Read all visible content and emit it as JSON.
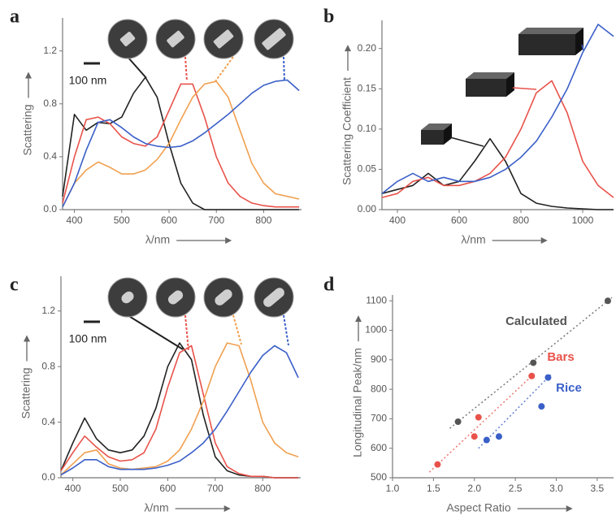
{
  "chart_data": [
    {
      "type": "line",
      "label": "a",
      "scale_bar": "100 nm",
      "xlabel": "λ/nm",
      "ylabel": "Scattering",
      "x": [
        375,
        400,
        425,
        450,
        475,
        500,
        525,
        550,
        575,
        600,
        625,
        650,
        675,
        700,
        725,
        750,
        775,
        800,
        825,
        850,
        875
      ],
      "xlim": [
        375,
        880
      ],
      "xticks": [
        400,
        500,
        600,
        700,
        800
      ],
      "ylim": [
        0,
        1.45
      ],
      "yticks": [
        {
          "value": 0,
          "label": "0.0"
        },
        0.4,
        0.8,
        1.2
      ],
      "series": [
        {
          "color": "#222222",
          "values": [
            0.1,
            0.72,
            0.6,
            0.66,
            0.65,
            0.7,
            0.88,
            1.0,
            0.85,
            0.5,
            0.2,
            0.05,
            0,
            0,
            0,
            0,
            0,
            0,
            0,
            0,
            0
          ]
        },
        {
          "color": "#e8524a",
          "values": [
            0.05,
            0.4,
            0.68,
            0.7,
            0.65,
            0.55,
            0.5,
            0.48,
            0.55,
            0.75,
            0.95,
            0.95,
            0.7,
            0.4,
            0.2,
            0.1,
            0.05,
            0.03,
            0.02,
            0.02,
            0.02
          ]
        },
        {
          "color": "#f0a050",
          "values": [
            0.02,
            0.2,
            0.3,
            0.36,
            0.32,
            0.27,
            0.27,
            0.3,
            0.38,
            0.5,
            0.68,
            0.85,
            0.95,
            0.97,
            0.85,
            0.6,
            0.35,
            0.2,
            0.12,
            0.1,
            0.08
          ]
        },
        {
          "color": "#3a5fc8",
          "values": [
            0.02,
            0.2,
            0.45,
            0.66,
            0.68,
            0.62,
            0.55,
            0.5,
            0.48,
            0.47,
            0.48,
            0.52,
            0.58,
            0.65,
            0.72,
            0.8,
            0.88,
            0.94,
            0.97,
            0.98,
            0.9
          ]
        }
      ]
    },
    {
      "type": "line",
      "label": "b",
      "xlabel": "λ/nm",
      "ylabel": "Scattering Coefficient",
      "x": [
        350,
        400,
        450,
        500,
        550,
        600,
        650,
        700,
        750,
        800,
        850,
        900,
        950,
        1000,
        1050,
        1100
      ],
      "xlim": [
        350,
        1100
      ],
      "xticks": [
        400,
        600,
        800,
        1000
      ],
      "ylim": [
        0,
        0.235
      ],
      "yticks": [
        {
          "value": 0,
          "label": "0.00"
        },
        {
          "value": 0.05,
          "label": "0.05"
        },
        {
          "value": 0.1,
          "label": "0.10"
        },
        {
          "value": 0.15,
          "label": "0.15"
        },
        {
          "value": 0.2,
          "label": "0.20"
        }
      ],
      "series": [
        {
          "color": "#222222",
          "values": [
            0.02,
            0.025,
            0.03,
            0.045,
            0.03,
            0.035,
            0.06,
            0.088,
            0.06,
            0.02,
            0.008,
            0.004,
            0.002,
            0.001,
            0,
            0
          ]
        },
        {
          "color": "#e8524a",
          "values": [
            0.015,
            0.02,
            0.035,
            0.04,
            0.03,
            0.03,
            0.035,
            0.045,
            0.065,
            0.1,
            0.145,
            0.16,
            0.12,
            0.06,
            0.03,
            0.015
          ]
        },
        {
          "color": "#3a5fc8",
          "values": [
            0.02,
            0.035,
            0.045,
            0.035,
            0.04,
            0.035,
            0.035,
            0.04,
            0.05,
            0.065,
            0.085,
            0.115,
            0.15,
            0.195,
            0.23,
            0.215
          ]
        }
      ]
    },
    {
      "type": "line",
      "label": "c",
      "scale_bar": "100 nm",
      "xlabel": "λ/nm",
      "ylabel": "Scattering",
      "x": [
        375,
        400,
        425,
        450,
        475,
        500,
        525,
        550,
        575,
        600,
        625,
        650,
        675,
        700,
        725,
        750,
        775,
        800,
        825,
        850,
        875
      ],
      "xlim": [
        375,
        880
      ],
      "xticks": [
        400,
        500,
        600,
        700,
        800
      ],
      "ylim": [
        0,
        1.45
      ],
      "yticks": [
        {
          "value": 0,
          "label": "0.0"
        },
        0.4,
        0.8,
        1.2
      ],
      "series": [
        {
          "color": "#222222",
          "values": [
            0.05,
            0.25,
            0.43,
            0.28,
            0.2,
            0.18,
            0.2,
            0.3,
            0.5,
            0.8,
            0.97,
            0.85,
            0.45,
            0.15,
            0.05,
            0.02,
            0.01,
            0.01,
            0,
            0,
            0
          ]
        },
        {
          "color": "#e8524a",
          "values": [
            0.05,
            0.18,
            0.3,
            0.22,
            0.15,
            0.12,
            0.13,
            0.18,
            0.35,
            0.65,
            0.9,
            0.95,
            0.6,
            0.25,
            0.08,
            0.03,
            0.01,
            0.01,
            0,
            0,
            0
          ]
        },
        {
          "color": "#f0a050",
          "values": [
            0.02,
            0.1,
            0.18,
            0.2,
            0.1,
            0.07,
            0.06,
            0.07,
            0.08,
            0.12,
            0.2,
            0.35,
            0.55,
            0.8,
            0.97,
            0.95,
            0.7,
            0.4,
            0.25,
            0.18,
            0.15
          ]
        },
        {
          "color": "#3a5fc8",
          "values": [
            0.02,
            0.07,
            0.13,
            0.13,
            0.08,
            0.06,
            0.06,
            0.06,
            0.07,
            0.09,
            0.12,
            0.18,
            0.25,
            0.35,
            0.48,
            0.62,
            0.76,
            0.88,
            0.95,
            0.9,
            0.72
          ]
        }
      ]
    },
    {
      "type": "scatter",
      "label": "d",
      "xlabel": "Aspect Ratio",
      "ylabel": "Longitudinal Peak/nm",
      "xlim": [
        1.0,
        3.7
      ],
      "xticks": [
        {
          "value": 1,
          "label": "1.0"
        },
        1.5,
        {
          "value": 2,
          "label": "2.0"
        },
        2.5,
        {
          "value": 3,
          "label": "3.0"
        },
        3.5
      ],
      "ylim": [
        500,
        1120
      ],
      "yticks": [
        500,
        600,
        700,
        800,
        900,
        1000,
        1100
      ],
      "series": [
        {
          "name": "Calculated",
          "color": "#555555",
          "x": [
            1.8,
            2.72,
            3.63
          ],
          "values": [
            690,
            890,
            1100
          ]
        },
        {
          "name": "Bars",
          "color": "#e8524a",
          "x": [
            1.55,
            2.0,
            2.05,
            2.7
          ],
          "values": [
            545,
            640,
            705,
            845
          ]
        },
        {
          "name": "Rice",
          "color": "#3a5fc8",
          "x": [
            2.15,
            2.3,
            2.82,
            2.9
          ],
          "values": [
            628,
            640,
            742,
            840
          ]
        }
      ]
    }
  ]
}
